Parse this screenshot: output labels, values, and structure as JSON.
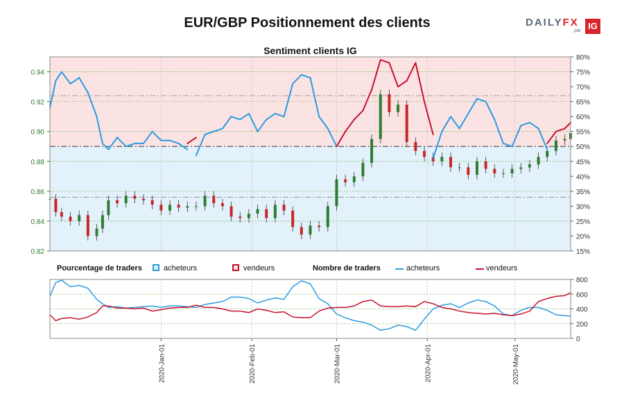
{
  "header": {
    "title": "EUR/GBP Positionnement des clients",
    "logo_daily": "DAILY",
    "logo_fx": "FX",
    "logo_par": "par",
    "logo_ig": "IG"
  },
  "legend": {
    "pct_label": "Pourcentage de traders",
    "pct_buyers": "acheteurs",
    "pct_sellers": "vendeurs",
    "count_label": "Nombre de traders",
    "count_buyers": "acheteurs",
    "count_sellers": "vendeurs"
  },
  "colors": {
    "buyers": "#2b9be0",
    "sellers": "#c8102e",
    "buyers_fill": "#e3f1fb",
    "sellers_fill": "#fbe3e3",
    "candle_up": "#2e7d32",
    "candle_down": "#c62828",
    "grid": "#7cbf63"
  },
  "chart_data": [
    {
      "type": "line",
      "title": "Sentiment clients IG",
      "xlabel": "",
      "ylabel": "",
      "ylim_left": [
        0.82,
        0.95
      ],
      "ylim_right": [
        15,
        80
      ],
      "left_ticks": [
        "0.82",
        "0.84",
        "0.86",
        "0.88",
        "0.90",
        "0.92",
        "0.94"
      ],
      "right_ticks": [
        "15%",
        "20%",
        "25%",
        "30%",
        "35%",
        "40%",
        "45%",
        "50%",
        "55%",
        "60%",
        "65%",
        "70%",
        "75%",
        "80%"
      ],
      "x_ticks": [
        "2020-Jan-01",
        "2020-Feb-01",
        "2020-Mar-01",
        "2020-Apr-01",
        "2020-May-01"
      ],
      "x_range_days": [
        -38,
        140
      ],
      "x_tick_days": [
        0,
        31,
        60,
        91,
        121
      ],
      "reference_levels_pct": [
        33,
        50,
        67
      ],
      "series": [
        {
          "name": "acheteurs",
          "unit": "%",
          "x": [
            -38,
            -36,
            -34,
            -31,
            -28,
            -25,
            -22,
            -20,
            -18,
            -15,
            -12,
            -9,
            -6,
            -3,
            0,
            3,
            6,
            9,
            12,
            15,
            18,
            21,
            24,
            27,
            30,
            33,
            36,
            39,
            42,
            45,
            48,
            51,
            54,
            57,
            60,
            63,
            66,
            69,
            72,
            75,
            78,
            81,
            84,
            87,
            90,
            93,
            96,
            99,
            102,
            105,
            108,
            111,
            114,
            117,
            120,
            123,
            126,
            129,
            132,
            135,
            138,
            140
          ],
          "values": [
            63,
            72,
            75,
            71,
            73,
            68,
            60,
            51,
            49,
            53,
            50,
            51,
            51,
            55,
            52,
            52,
            51,
            49,
            47,
            54,
            55,
            56,
            60,
            59,
            61,
            55,
            59,
            61,
            60,
            71,
            74,
            73,
            60,
            56,
            50,
            45,
            41,
            38,
            31,
            21,
            22,
            30,
            28,
            22,
            35,
            46,
            55,
            60,
            56,
            61,
            66,
            65,
            59,
            51,
            50,
            57,
            58,
            56,
            49,
            45,
            44,
            42
          ]
        },
        {
          "name": "vendeurs",
          "unit": "%",
          "x": [
            -38,
            -36,
            -34,
            -31,
            -28,
            -25,
            -22,
            -20,
            -18,
            -15,
            -12,
            -9,
            -6,
            -3,
            0,
            3,
            6,
            9,
            12,
            15,
            18,
            21,
            24,
            27,
            30,
            33,
            36,
            39,
            42,
            45,
            48,
            51,
            54,
            57,
            60,
            63,
            66,
            69,
            72,
            75,
            78,
            81,
            84,
            87,
            90,
            93,
            96,
            99,
            102,
            105,
            108,
            111,
            114,
            117,
            120,
            123,
            126,
            129,
            132,
            135,
            138,
            140
          ],
          "values": [
            37,
            28,
            25,
            29,
            27,
            32,
            40,
            49,
            51,
            47,
            50,
            49,
            49,
            45,
            48,
            48,
            49,
            51,
            53,
            46,
            45,
            44,
            40,
            41,
            39,
            45,
            41,
            39,
            40,
            29,
            26,
            27,
            40,
            44,
            50,
            55,
            59,
            62,
            69,
            79,
            78,
            70,
            72,
            78,
            65,
            54,
            45,
            40,
            44,
            39,
            34,
            35,
            41,
            49,
            50,
            43,
            42,
            44,
            51,
            55,
            56,
            58
          ]
        },
        {
          "name": "EUR/GBP",
          "type": "candlestick",
          "x": [
            -38,
            -36,
            -34,
            -31,
            -28,
            -25,
            -22,
            -20,
            -18,
            -15,
            -12,
            -9,
            -6,
            -3,
            0,
            3,
            6,
            9,
            12,
            15,
            18,
            21,
            24,
            27,
            30,
            33,
            36,
            39,
            42,
            45,
            48,
            51,
            54,
            57,
            60,
            63,
            66,
            69,
            72,
            75,
            78,
            81,
            84,
            87,
            90,
            93,
            96,
            99,
            102,
            105,
            108,
            111,
            114,
            117,
            120,
            123,
            126,
            129,
            132,
            135,
            138,
            140
          ],
          "values": [
            0.855,
            0.846,
            0.843,
            0.84,
            0.844,
            0.83,
            0.835,
            0.844,
            0.854,
            0.852,
            0.857,
            0.855,
            0.854,
            0.851,
            0.847,
            0.851,
            0.849,
            0.85,
            0.85,
            0.857,
            0.852,
            0.85,
            0.843,
            0.842,
            0.845,
            0.848,
            0.842,
            0.851,
            0.847,
            0.836,
            0.831,
            0.837,
            0.836,
            0.85,
            0.868,
            0.866,
            0.87,
            0.879,
            0.895,
            0.925,
            0.913,
            0.918,
            0.893,
            0.887,
            0.883,
            0.88,
            0.883,
            0.876,
            0.876,
            0.871,
            0.88,
            0.875,
            0.872,
            0.872,
            0.875,
            0.876,
            0.878,
            0.883,
            0.887,
            0.894,
            0.895,
            0.899
          ]
        }
      ]
    },
    {
      "type": "line",
      "title": "Nombre de traders",
      "ylim": [
        0,
        800
      ],
      "y_ticks": [
        "0",
        "200",
        "400",
        "600",
        "800"
      ],
      "series": [
        {
          "name": "acheteurs",
          "x": [
            -38,
            -36,
            -34,
            -31,
            -28,
            -25,
            -22,
            -20,
            -18,
            -15,
            -12,
            -9,
            -6,
            -3,
            0,
            3,
            6,
            9,
            12,
            15,
            18,
            21,
            24,
            27,
            30,
            33,
            36,
            39,
            42,
            45,
            48,
            51,
            54,
            57,
            60,
            63,
            66,
            69,
            72,
            75,
            78,
            81,
            84,
            87,
            90,
            93,
            96,
            99,
            102,
            105,
            108,
            111,
            114,
            117,
            120,
            123,
            126,
            129,
            132,
            135,
            138,
            140
          ],
          "values": [
            570,
            760,
            790,
            700,
            720,
            680,
            530,
            470,
            420,
            430,
            410,
            420,
            430,
            440,
            420,
            440,
            440,
            430,
            420,
            460,
            480,
            500,
            560,
            560,
            540,
            480,
            520,
            550,
            530,
            700,
            780,
            740,
            540,
            470,
            330,
            280,
            240,
            220,
            180,
            110,
            130,
            180,
            160,
            110,
            260,
            400,
            450,
            470,
            420,
            480,
            520,
            500,
            440,
            330,
            310,
            380,
            420,
            420,
            380,
            320,
            310,
            300
          ]
        },
        {
          "name": "vendeurs",
          "x": [
            -38,
            -36,
            -34,
            -31,
            -28,
            -25,
            -22,
            -20,
            -18,
            -15,
            -12,
            -9,
            -6,
            -3,
            0,
            3,
            6,
            9,
            12,
            15,
            18,
            21,
            24,
            27,
            30,
            33,
            36,
            39,
            42,
            45,
            48,
            51,
            54,
            57,
            60,
            63,
            66,
            69,
            72,
            75,
            78,
            81,
            84,
            87,
            90,
            93,
            96,
            99,
            102,
            105,
            108,
            111,
            114,
            117,
            120,
            123,
            126,
            129,
            132,
            135,
            138,
            140
          ],
          "values": [
            320,
            240,
            270,
            280,
            260,
            290,
            350,
            440,
            440,
            410,
            410,
            400,
            410,
            370,
            390,
            410,
            420,
            420,
            450,
            420,
            420,
            400,
            370,
            370,
            350,
            400,
            380,
            350,
            360,
            290,
            280,
            280,
            370,
            410,
            420,
            420,
            440,
            500,
            520,
            440,
            430,
            430,
            440,
            430,
            500,
            470,
            420,
            400,
            370,
            350,
            340,
            330,
            340,
            320,
            310,
            330,
            370,
            500,
            540,
            570,
            580,
            620
          ]
        }
      ]
    }
  ]
}
